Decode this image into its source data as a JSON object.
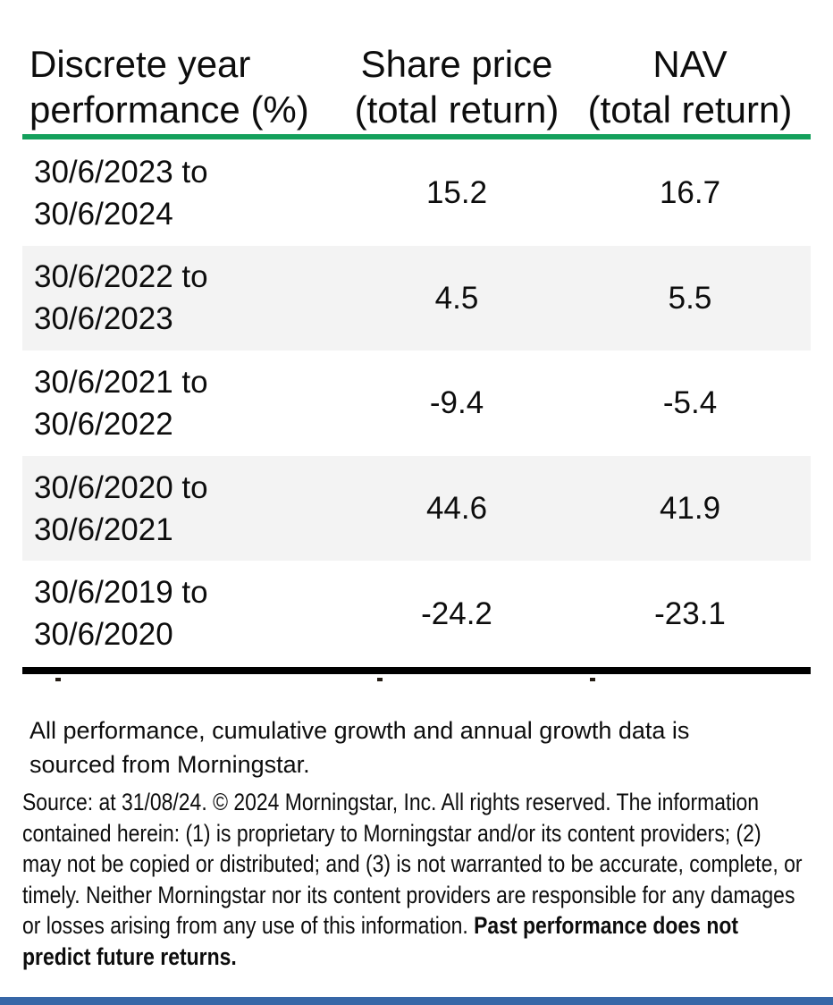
{
  "table": {
    "header": {
      "col1_line1": "Discrete year",
      "col1_line2": "performance (%)",
      "col2_line1": "Share price",
      "col2_line2": "(total return)",
      "col3_line1": "NAV",
      "col3_line2": "(total return)"
    },
    "rows": [
      {
        "period_line1": "30/6/2023 to",
        "period_line2": "30/6/2024",
        "share_price": "15.2",
        "nav": "16.7"
      },
      {
        "period_line1": "30/6/2022 to",
        "period_line2": "30/6/2023",
        "share_price": "4.5",
        "nav": "5.5"
      },
      {
        "period_line1": "30/6/2021 to",
        "period_line2": "30/6/2022",
        "share_price": "-9.4",
        "nav": "-5.4"
      },
      {
        "period_line1": "30/6/2020 to",
        "period_line2": "30/6/2021",
        "share_price": "44.6",
        "nav": "41.9"
      },
      {
        "period_line1": "30/6/2019 to",
        "period_line2": "30/6/2020",
        "share_price": "-24.2",
        "nav": "-23.1"
      }
    ]
  },
  "chart_data": {
    "type": "table",
    "title": "Discrete year performance (%)",
    "columns": [
      "Discrete year performance (%)",
      "Share price (total return)",
      "NAV (total return)"
    ],
    "categories": [
      "30/6/2023 to 30/6/2024",
      "30/6/2022 to 30/6/2023",
      "30/6/2021 to 30/6/2022",
      "30/6/2020 to 30/6/2021",
      "30/6/2019 to 30/6/2020"
    ],
    "series": [
      {
        "name": "Share price (total return)",
        "values": [
          15.2,
          4.5,
          -9.4,
          44.6,
          -24.2
        ]
      },
      {
        "name": "NAV (total return)",
        "values": [
          16.7,
          5.5,
          -5.4,
          41.9,
          -23.1
        ]
      }
    ]
  },
  "footnotes": {
    "performance_note_line1": "All performance, cumulative growth and annual growth data is",
    "performance_note_line2": "sourced from Morningstar.",
    "source_lines": [
      {
        "text": "Source: at 31/08/24. © 2024 Morningstar, Inc. All rights reserved. The information",
        "bold": ""
      },
      {
        "text": "contained herein: (1) is proprietary to Morningstar and/or its content providers; (2)",
        "bold": ""
      },
      {
        "text": "may not be copied or distributed; and (3) is not warranted to be accurate, complete, or",
        "bold": ""
      },
      {
        "text": "timely. Neither Morningstar nor its content providers are responsible for any damages",
        "bold": ""
      },
      {
        "text": "or losses arising from any use of this information. ",
        "bold": "Past performance does not"
      },
      {
        "text": "",
        "bold": "predict future returns."
      }
    ]
  },
  "colors": {
    "header_rule_green": "#14a05c",
    "row_alt_gray": "#f3f3f3",
    "table_bottom_rule": "#000000",
    "footer_bar_blue": "#3767a7"
  }
}
